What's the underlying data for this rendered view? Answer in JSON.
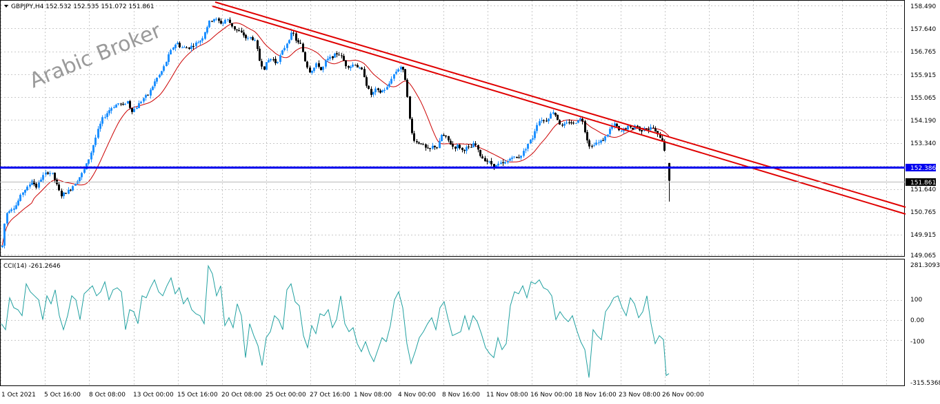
{
  "header": {
    "symbol_line": "GBPJPY,H4  152.532 152.535 151.072 151.861"
  },
  "watermark": "Arabic Broker",
  "colors": {
    "bull": "#1e90ff",
    "bear": "#000000",
    "ma": "#cc0000",
    "trend": "#e00000",
    "support": "#0000ee",
    "cci": "#20a0a0",
    "grid": "#c8c8c8"
  },
  "price_axis": {
    "labels": [
      "158.490",
      "157.640",
      "156.765",
      "155.915",
      "155.065",
      "154.190",
      "153.340",
      "152.386",
      "151.861",
      "151.640",
      "150.765",
      "149.915",
      "149.065"
    ],
    "support_label": "152.386",
    "current_label": "151.861"
  },
  "indicator": {
    "title": "CCI(14) -261.2646",
    "labels": [
      "281.3093",
      "100",
      "0.00",
      "-100",
      "-315.5368"
    ]
  },
  "time_axis": {
    "labels": [
      "1 Oct 2021",
      "5 Oct 16:00",
      "8 Oct 08:00",
      "13 Oct 00:00",
      "15 Oct 16:00",
      "20 Oct 08:00",
      "25 Oct 00:00",
      "27 Oct 16:00",
      "1 Nov 08:00",
      "4 Nov 00:00",
      "8 Nov 16:00",
      "11 Nov 08:00",
      "16 Nov 00:00",
      "18 Nov 16:00",
      "23 Nov 08:00",
      "26 Nov 00:00"
    ]
  },
  "chart_data": {
    "type": "candlestick",
    "symbol": "GBPJPY",
    "timeframe": "H4",
    "last": {
      "open": 152.532,
      "high": 152.535,
      "low": 151.072,
      "close": 151.861
    },
    "price_range": [
      149.065,
      158.49
    ],
    "support_level": 152.386,
    "cci_range": [
      -315.5368,
      281.3093
    ],
    "cci_last": -261.2646,
    "path": [
      [
        0,
        149.6
      ],
      [
        3,
        149.4
      ],
      [
        6,
        150.2
      ],
      [
        10,
        150.7
      ],
      [
        15,
        150.8
      ],
      [
        22,
        150.9
      ],
      [
        28,
        151.2
      ],
      [
        34,
        151.5
      ],
      [
        40,
        151.6
      ],
      [
        46,
        151.9
      ],
      [
        52,
        151.6
      ],
      [
        58,
        151.9
      ],
      [
        64,
        152.1
      ],
      [
        70,
        152.2
      ],
      [
        76,
        152.1
      ],
      [
        82,
        151.7
      ],
      [
        88,
        151.3
      ],
      [
        94,
        151.4
      ],
      [
        100,
        151.5
      ],
      [
        106,
        151.7
      ],
      [
        112,
        151.9
      ],
      [
        118,
        152.1
      ],
      [
        124,
        152.4
      ],
      [
        130,
        152.8
      ],
      [
        136,
        153.3
      ],
      [
        142,
        153.8
      ],
      [
        148,
        154.2
      ],
      [
        154,
        154.4
      ],
      [
        160,
        154.6
      ],
      [
        166,
        154.7
      ],
      [
        172,
        154.8
      ],
      [
        178,
        154.7
      ],
      [
        184,
        154.9
      ],
      [
        190,
        154.5
      ],
      [
        196,
        154.6
      ],
      [
        202,
        154.8
      ],
      [
        208,
        155.0
      ],
      [
        214,
        155.1
      ],
      [
        220,
        155.4
      ],
      [
        226,
        155.7
      ],
      [
        232,
        155.9
      ],
      [
        238,
        156.2
      ],
      [
        244,
        156.6
      ],
      [
        250,
        156.9
      ],
      [
        256,
        157.1
      ],
      [
        262,
        156.9
      ],
      [
        268,
        156.9
      ],
      [
        274,
        156.9
      ],
      [
        280,
        157.0
      ],
      [
        286,
        157.1
      ],
      [
        292,
        157.2
      ],
      [
        298,
        157.6
      ],
      [
        304,
        157.9
      ],
      [
        310,
        158.0
      ],
      [
        316,
        157.9
      ],
      [
        322,
        157.8
      ],
      [
        328,
        158.0
      ],
      [
        334,
        157.8
      ],
      [
        340,
        157.6
      ],
      [
        346,
        157.5
      ],
      [
        352,
        157.4
      ],
      [
        358,
        157.2
      ],
      [
        364,
        157.3
      ],
      [
        370,
        157.1
      ],
      [
        376,
        156.4
      ],
      [
        382,
        156.1
      ],
      [
        388,
        156.4
      ],
      [
        394,
        156.5
      ],
      [
        400,
        156.3
      ],
      [
        406,
        156.6
      ],
      [
        412,
        156.9
      ],
      [
        418,
        157.2
      ],
      [
        424,
        157.5
      ],
      [
        430,
        157.1
      ],
      [
        436,
        157.0
      ],
      [
        442,
        156.4
      ],
      [
        448,
        156.0
      ],
      [
        454,
        156.1
      ],
      [
        460,
        156.3
      ],
      [
        466,
        156.0
      ],
      [
        472,
        156.4
      ],
      [
        478,
        156.5
      ],
      [
        484,
        156.6
      ],
      [
        490,
        156.7
      ],
      [
        496,
        156.5
      ],
      [
        502,
        156.2
      ],
      [
        508,
        156.2
      ],
      [
        514,
        156.3
      ],
      [
        520,
        156.1
      ],
      [
        526,
        156.0
      ],
      [
        532,
        155.4
      ],
      [
        538,
        155.1
      ],
      [
        544,
        155.3
      ],
      [
        550,
        155.2
      ],
      [
        556,
        155.3
      ],
      [
        562,
        155.4
      ],
      [
        568,
        155.8
      ],
      [
        574,
        156.0
      ],
      [
        580,
        156.2
      ],
      [
        586,
        155.9
      ],
      [
        590,
        155.2
      ],
      [
        594,
        154.1
      ],
      [
        598,
        153.5
      ],
      [
        604,
        153.3
      ],
      [
        610,
        153.3
      ],
      [
        616,
        153.1
      ],
      [
        622,
        153.0
      ],
      [
        628,
        153.2
      ],
      [
        634,
        153.1
      ],
      [
        640,
        153.6
      ],
      [
        646,
        153.5
      ],
      [
        652,
        153.3
      ],
      [
        658,
        153.1
      ],
      [
        664,
        153.2
      ],
      [
        670,
        153.0
      ],
      [
        676,
        153.1
      ],
      [
        682,
        153.1
      ],
      [
        688,
        153.3
      ],
      [
        694,
        152.9
      ],
      [
        700,
        152.7
      ],
      [
        706,
        152.6
      ],
      [
        712,
        152.5
      ],
      [
        718,
        152.4
      ],
      [
        724,
        152.5
      ],
      [
        730,
        152.5
      ],
      [
        736,
        152.6
      ],
      [
        742,
        152.8
      ],
      [
        748,
        152.7
      ],
      [
        754,
        152.8
      ],
      [
        760,
        153.0
      ],
      [
        766,
        153.3
      ],
      [
        772,
        153.5
      ],
      [
        778,
        154.0
      ],
      [
        784,
        154.2
      ],
      [
        790,
        154.1
      ],
      [
        796,
        154.3
      ],
      [
        802,
        154.5
      ],
      [
        808,
        154.2
      ],
      [
        814,
        153.9
      ],
      [
        820,
        154.0
      ],
      [
        826,
        154.1
      ],
      [
        832,
        154.0
      ],
      [
        838,
        154.2
      ],
      [
        844,
        154.2
      ],
      [
        850,
        153.5
      ],
      [
        856,
        153.1
      ],
      [
        862,
        153.3
      ],
      [
        868,
        153.3
      ],
      [
        874,
        153.4
      ],
      [
        880,
        153.6
      ],
      [
        886,
        153.9
      ],
      [
        892,
        154.0
      ],
      [
        898,
        153.7
      ],
      [
        904,
        153.8
      ],
      [
        910,
        153.9
      ],
      [
        916,
        153.8
      ],
      [
        922,
        154.0
      ],
      [
        928,
        153.7
      ],
      [
        934,
        153.9
      ],
      [
        940,
        153.8
      ],
      [
        946,
        153.9
      ],
      [
        952,
        153.6
      ],
      [
        958,
        153.5
      ],
      [
        962,
        153.3
      ],
      [
        966,
        152.5
      ],
      [
        970,
        151.9
      ]
    ],
    "cci_path": [
      [
        2,
        -20
      ],
      [
        8,
        -50
      ],
      [
        14,
        110
      ],
      [
        20,
        60
      ],
      [
        26,
        50
      ],
      [
        32,
        20
      ],
      [
        38,
        180
      ],
      [
        44,
        140
      ],
      [
        50,
        120
      ],
      [
        56,
        100
      ],
      [
        62,
        0
      ],
      [
        68,
        120
      ],
      [
        74,
        80
      ],
      [
        80,
        150
      ],
      [
        86,
        20
      ],
      [
        92,
        -50
      ],
      [
        98,
        20
      ],
      [
        104,
        120
      ],
      [
        110,
        100
      ],
      [
        116,
        0
      ],
      [
        122,
        130
      ],
      [
        128,
        150
      ],
      [
        134,
        170
      ],
      [
        140,
        120
      ],
      [
        146,
        140
      ],
      [
        152,
        190
      ],
      [
        158,
        100
      ],
      [
        164,
        150
      ],
      [
        170,
        160
      ],
      [
        176,
        140
      ],
      [
        182,
        -50
      ],
      [
        188,
        50
      ],
      [
        194,
        40
      ],
      [
        200,
        -20
      ],
      [
        206,
        120
      ],
      [
        212,
        110
      ],
      [
        218,
        160
      ],
      [
        224,
        200
      ],
      [
        230,
        140
      ],
      [
        236,
        120
      ],
      [
        242,
        170
      ],
      [
        248,
        210
      ],
      [
        254,
        130
      ],
      [
        260,
        160
      ],
      [
        266,
        80
      ],
      [
        272,
        110
      ],
      [
        278,
        50
      ],
      [
        284,
        30
      ],
      [
        290,
        20
      ],
      [
        296,
        -20
      ],
      [
        302,
        270
      ],
      [
        308,
        230
      ],
      [
        314,
        120
      ],
      [
        320,
        170
      ],
      [
        326,
        -30
      ],
      [
        332,
        10
      ],
      [
        338,
        -40
      ],
      [
        344,
        80
      ],
      [
        350,
        20
      ],
      [
        356,
        -190
      ],
      [
        362,
        -20
      ],
      [
        368,
        -80
      ],
      [
        374,
        -130
      ],
      [
        380,
        -230
      ],
      [
        386,
        -90
      ],
      [
        392,
        -60
      ],
      [
        398,
        20
      ],
      [
        404,
        0
      ],
      [
        410,
        -50
      ],
      [
        416,
        150
      ],
      [
        422,
        180
      ],
      [
        428,
        90
      ],
      [
        434,
        70
      ],
      [
        440,
        -80
      ],
      [
        446,
        -140
      ],
      [
        452,
        -30
      ],
      [
        458,
        -70
      ],
      [
        464,
        30
      ],
      [
        470,
        20
      ],
      [
        476,
        50
      ],
      [
        482,
        -40
      ],
      [
        488,
        0
      ],
      [
        494,
        120
      ],
      [
        500,
        -20
      ],
      [
        506,
        -60
      ],
      [
        512,
        -40
      ],
      [
        518,
        -120
      ],
      [
        524,
        -160
      ],
      [
        530,
        -110
      ],
      [
        536,
        -170
      ],
      [
        542,
        -210
      ],
      [
        548,
        -150
      ],
      [
        554,
        -90
      ],
      [
        560,
        -110
      ],
      [
        566,
        -30
      ],
      [
        572,
        100
      ],
      [
        578,
        140
      ],
      [
        584,
        60
      ],
      [
        590,
        -120
      ],
      [
        596,
        -220
      ],
      [
        602,
        -160
      ],
      [
        608,
        -90
      ],
      [
        614,
        -60
      ],
      [
        620,
        -20
      ],
      [
        626,
        10
      ],
      [
        632,
        -50
      ],
      [
        638,
        60
      ],
      [
        644,
        90
      ],
      [
        650,
        0
      ],
      [
        656,
        -80
      ],
      [
        662,
        -70
      ],
      [
        668,
        -60
      ],
      [
        674,
        20
      ],
      [
        680,
        -50
      ],
      [
        686,
        20
      ],
      [
        692,
        -10
      ],
      [
        698,
        -70
      ],
      [
        704,
        -140
      ],
      [
        710,
        -170
      ],
      [
        716,
        -190
      ],
      [
        722,
        -90
      ],
      [
        728,
        -150
      ],
      [
        734,
        -120
      ],
      [
        740,
        70
      ],
      [
        746,
        140
      ],
      [
        752,
        130
      ],
      [
        758,
        170
      ],
      [
        764,
        110
      ],
      [
        770,
        190
      ],
      [
        776,
        180
      ],
      [
        782,
        200
      ],
      [
        788,
        160
      ],
      [
        794,
        150
      ],
      [
        800,
        120
      ],
      [
        806,
        0
      ],
      [
        812,
        40
      ],
      [
        818,
        10
      ],
      [
        824,
        -10
      ],
      [
        830,
        20
      ],
      [
        836,
        -50
      ],
      [
        842,
        -110
      ],
      [
        848,
        -150
      ],
      [
        854,
        -290
      ],
      [
        860,
        -50
      ],
      [
        866,
        -80
      ],
      [
        872,
        -100
      ],
      [
        878,
        40
      ],
      [
        884,
        70
      ],
      [
        890,
        110
      ],
      [
        896,
        120
      ],
      [
        902,
        60
      ],
      [
        908,
        20
      ],
      [
        914,
        110
      ],
      [
        920,
        80
      ],
      [
        926,
        10
      ],
      [
        932,
        40
      ],
      [
        938,
        120
      ],
      [
        944,
        -20
      ],
      [
        950,
        -120
      ],
      [
        956,
        -80
      ],
      [
        962,
        -100
      ],
      [
        966,
        -280
      ],
      [
        970,
        -270
      ]
    ]
  }
}
